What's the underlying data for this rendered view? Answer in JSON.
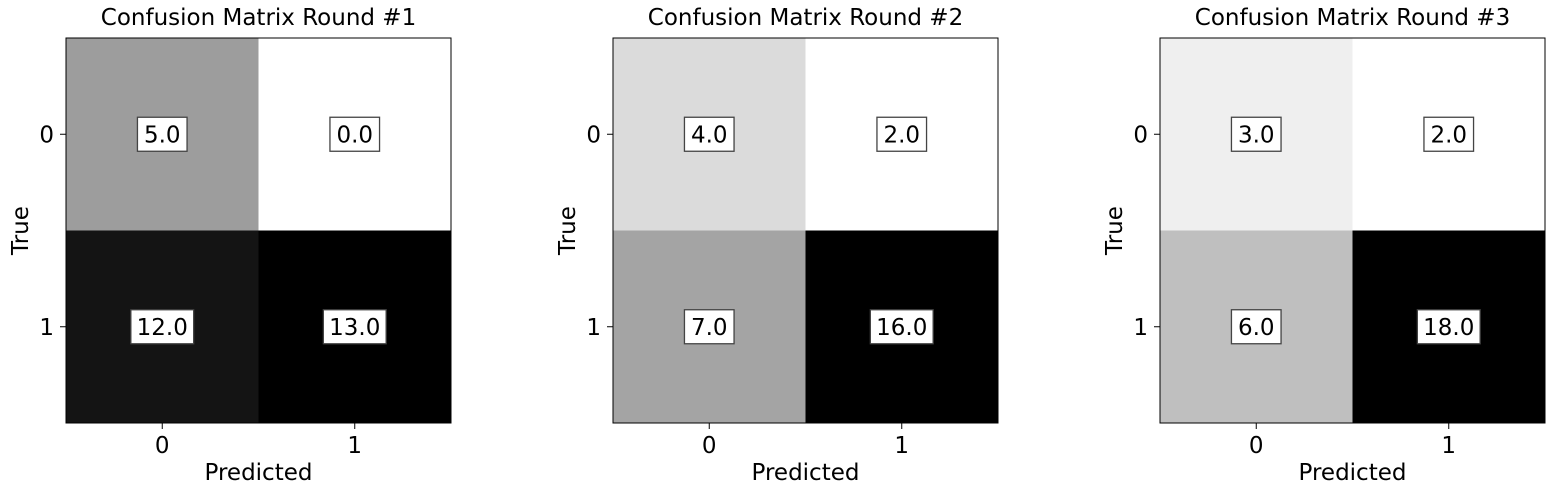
{
  "chart_data": [
    {
      "type": "heatmap",
      "title": "Confusion Matrix Round #1",
      "xlabel": "Predicted",
      "ylabel": "True",
      "x_categories": [
        "0",
        "1"
      ],
      "y_categories": [
        "0",
        "1"
      ],
      "values": [
        [
          5.0,
          0.0
        ],
        [
          12.0,
          13.0
        ]
      ],
      "labels": [
        [
          "5.0",
          "0.0"
        ],
        [
          "12.0",
          "13.0"
        ]
      ],
      "colormap": "Greys"
    },
    {
      "type": "heatmap",
      "title": "Confusion Matrix Round #2",
      "xlabel": "Predicted",
      "ylabel": "True",
      "x_categories": [
        "0",
        "1"
      ],
      "y_categories": [
        "0",
        "1"
      ],
      "values": [
        [
          4.0,
          2.0
        ],
        [
          7.0,
          16.0
        ]
      ],
      "labels": [
        [
          "4.0",
          "2.0"
        ],
        [
          "7.0",
          "16.0"
        ]
      ],
      "colormap": "Greys"
    },
    {
      "type": "heatmap",
      "title": "Confusion Matrix Round #3",
      "xlabel": "Predicted",
      "ylabel": "True",
      "x_categories": [
        "0",
        "1"
      ],
      "y_categories": [
        "0",
        "1"
      ],
      "values": [
        [
          3.0,
          2.0
        ],
        [
          6.0,
          18.0
        ]
      ],
      "labels": [
        [
          "3.0",
          "2.0"
        ],
        [
          "6.0",
          "18.0"
        ]
      ],
      "colormap": "Greys"
    }
  ]
}
